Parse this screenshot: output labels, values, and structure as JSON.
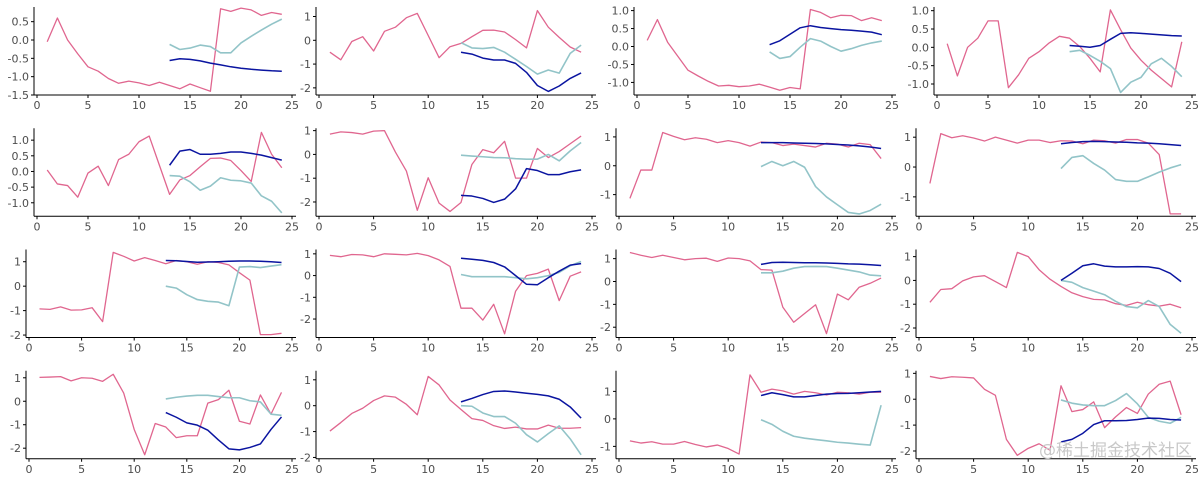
{
  "chart_data": {
    "type": "line",
    "layout": "4x4 small multiples",
    "grid": false,
    "x": [
      1,
      2,
      3,
      4,
      5,
      6,
      7,
      8,
      9,
      10,
      11,
      12,
      13,
      14,
      15,
      16,
      17,
      18,
      19,
      20,
      21,
      22,
      23,
      24
    ],
    "x_forecast": [
      13,
      14,
      15,
      16,
      17,
      18,
      19,
      20,
      21,
      22,
      23,
      24
    ],
    "xlim": [
      0,
      25
    ],
    "xticks": [
      "0",
      "5",
      "10",
      "15",
      "20",
      "25"
    ],
    "colors": {
      "history": "#e0668f",
      "forecast_a": "#92c4c8",
      "forecast_b": "#0a14a0"
    },
    "panels": [
      {
        "ylim": [
          -1.5,
          0.9
        ],
        "yticks": [
          0.5,
          0,
          -0.5,
          -1,
          -1.5
        ],
        "ytick_labels": [
          "0.5",
          "0.0",
          "-0.5",
          "-1.0",
          "-1.5"
        ],
        "history": [
          -0.05,
          0.6,
          0,
          -0.38,
          -0.73,
          -0.85,
          -1.05,
          -1.18,
          -1.12,
          -1.17,
          -1.24,
          -1.15,
          -1.24,
          -1.33,
          -1.2,
          -1.3,
          -1.4,
          0.85,
          0.78,
          0.87,
          0.82,
          0.67,
          0.75,
          0.7
        ],
        "forecast_a": [
          -0.12,
          -0.26,
          -0.22,
          -0.14,
          -0.18,
          -0.35,
          -0.35,
          -0.08,
          0.1,
          0.27,
          0.43,
          0.57
        ],
        "forecast_b": [
          -0.56,
          -0.51,
          -0.53,
          -0.57,
          -0.63,
          -0.68,
          -0.73,
          -0.77,
          -0.8,
          -0.82,
          -0.84,
          -0.85
        ]
      },
      {
        "ylim": [
          -2.3,
          1.4
        ],
        "yticks": [
          1,
          0,
          -1,
          -2
        ],
        "ytick_labels": [
          "1",
          "0",
          "-1",
          "-2"
        ],
        "history": [
          -0.5,
          -0.82,
          -0.05,
          0.15,
          -0.45,
          0.38,
          0.55,
          0.95,
          1.13,
          0.2,
          -0.73,
          -0.27,
          -0.13,
          0.15,
          0.42,
          0.43,
          0.35,
          0.03,
          -0.32,
          1.25,
          0.55,
          0.12,
          -0.28,
          -0.5
        ],
        "forecast_a": [
          -0.1,
          -0.32,
          -0.35,
          -0.3,
          -0.5,
          -0.8,
          -1.1,
          -1.42,
          -1.25,
          -1.38,
          -0.55,
          -0.2
        ],
        "forecast_b": [
          -0.5,
          -0.58,
          -0.75,
          -0.83,
          -0.83,
          -0.97,
          -1.35,
          -1.9,
          -2.15,
          -1.92,
          -1.6,
          -1.37
        ]
      },
      {
        "ylim": [
          -1.35,
          1.1
        ],
        "yticks": [
          1,
          0.5,
          0,
          -0.5,
          -1
        ],
        "ytick_labels": [
          "1.0",
          "0.5",
          "0.0",
          "-0.5",
          "-1.0"
        ],
        "history": [
          0.17,
          0.75,
          0.12,
          -0.27,
          -0.66,
          -0.82,
          -0.97,
          -1.1,
          -1.08,
          -1.12,
          -1.1,
          -1.05,
          -1.13,
          -1.22,
          -1.14,
          -1.18,
          1.03,
          0.95,
          0.8,
          0.87,
          0.86,
          0.72,
          0.8,
          0.72
        ],
        "forecast_a": [
          -0.15,
          -0.33,
          -0.28,
          -0.02,
          0.22,
          0.15,
          0.0,
          -0.13,
          -0.06,
          0.03,
          0.1,
          0.15
        ],
        "forecast_b": [
          0.05,
          0.16,
          0.34,
          0.52,
          0.58,
          0.53,
          0.5,
          0.47,
          0.45,
          0.43,
          0.4,
          0.33
        ]
      },
      {
        "ylim": [
          -1.3,
          1.1
        ],
        "yticks": [
          1,
          0.5,
          0,
          -0.5,
          -1
        ],
        "ytick_labels": [
          "1.0",
          "0.5",
          "0.0",
          "-0.5",
          "-1.0"
        ],
        "history": [
          0.1,
          -0.78,
          0,
          0.25,
          0.72,
          0.72,
          -1.1,
          -0.75,
          -0.3,
          -0.12,
          0.12,
          0.3,
          0.25,
          0.02,
          -0.3,
          -0.67,
          1.02,
          0.48,
          -0.02,
          -0.35,
          -0.62,
          -0.85,
          -1.08,
          0.15
        ],
        "forecast_a": [
          -0.12,
          -0.08,
          -0.22,
          -0.38,
          -0.58,
          -1.23,
          -0.95,
          -0.82,
          -0.45,
          -0.3,
          -0.52,
          -0.8
        ],
        "forecast_b": [
          0.05,
          0.03,
          0,
          0.05,
          0.22,
          0.38,
          0.4,
          0.38,
          0.36,
          0.34,
          0.32,
          0.31
        ]
      },
      {
        "ylim": [
          -1.43,
          1.38
        ],
        "yticks": [
          1,
          0.5,
          0,
          -0.5,
          -1
        ],
        "ytick_labels": [
          "1.0",
          "0.5",
          "0.0",
          "-0.5",
          "-1.0"
        ],
        "history": [
          0.05,
          -0.4,
          -0.45,
          -0.82,
          -0.05,
          0.17,
          -0.45,
          0.38,
          0.55,
          0.95,
          1.13,
          0.2,
          -0.73,
          -0.27,
          -0.13,
          0.15,
          0.42,
          0.43,
          0.35,
          0.03,
          -0.32,
          1.25,
          0.55,
          0.12
        ],
        "forecast_a": [
          -0.13,
          -0.15,
          -0.33,
          -0.6,
          -0.47,
          -0.2,
          -0.28,
          -0.3,
          -0.37,
          -0.78,
          -0.95,
          -1.32
        ],
        "forecast_b": [
          0.2,
          0.65,
          0.7,
          0.55,
          0.55,
          0.58,
          0.62,
          0.62,
          0.58,
          0.52,
          0.44,
          0.36
        ]
      },
      {
        "ylim": [
          -2.6,
          1.1
        ],
        "yticks": [
          1,
          0,
          -1,
          -2
        ],
        "ytick_labels": [
          "1",
          "0",
          "-1",
          "-2"
        ],
        "history": [
          0.85,
          0.95,
          0.92,
          0.85,
          0.98,
          1.0,
          0.1,
          -0.7,
          -2.35,
          -0.98,
          -2.05,
          -2.4,
          -2.02,
          -0.42,
          0.2,
          0.07,
          0.55,
          -1.0,
          -1.0,
          0.25,
          -0.13,
          0.12,
          0.45,
          0.77
        ],
        "forecast_a": [
          -0.03,
          -0.07,
          -0.1,
          -0.13,
          -0.14,
          -0.18,
          -0.2,
          -0.2,
          0,
          -0.27,
          0.15,
          0.5
        ],
        "forecast_b": [
          -1.72,
          -1.75,
          -1.85,
          -2.02,
          -1.88,
          -1.45,
          -0.6,
          -0.68,
          -0.85,
          -0.85,
          -0.73,
          -0.65
        ]
      },
      {
        "ylim": [
          -1.75,
          1.3
        ],
        "yticks": [
          1,
          0,
          -1
        ],
        "ytick_labels": [
          "1",
          "0",
          "-1"
        ],
        "history": [
          -1.13,
          -0.15,
          -0.15,
          1.15,
          1.02,
          0.9,
          0.97,
          0.92,
          0.8,
          0.87,
          0.8,
          0.68,
          0.82,
          0.8,
          0.7,
          0.75,
          0.7,
          0.65,
          0.78,
          0.75,
          0.65,
          0.78,
          0.73,
          0.25
        ],
        "forecast_a": [
          -0.03,
          0.15,
          0.0,
          0.15,
          -0.05,
          -0.72,
          -1.08,
          -1.35,
          -1.62,
          -1.67,
          -1.55,
          -1.33
        ],
        "forecast_b": [
          0.8,
          0.8,
          0.8,
          0.79,
          0.78,
          0.77,
          0.76,
          0.74,
          0.72,
          0.69,
          0.65,
          0.6
        ]
      },
      {
        "ylim": [
          -1.65,
          1.3
        ],
        "yticks": [
          1,
          0,
          -1
        ],
        "ytick_labels": [
          "1",
          "0",
          "-1"
        ],
        "history": [
          -0.55,
          1.12,
          0.98,
          1.05,
          0.97,
          0.87,
          1.0,
          0.9,
          0.8,
          0.9,
          0.9,
          0.82,
          0.88,
          0.87,
          0.78,
          0.9,
          0.88,
          0.8,
          0.92,
          0.92,
          0.8,
          0.42,
          -1.57,
          -1.57
        ],
        "forecast_a": [
          -0.05,
          0.32,
          0.38,
          0.12,
          -0.1,
          -0.42,
          -0.48,
          -0.48,
          -0.33,
          -0.17,
          -0.03,
          0.08
        ],
        "forecast_b": [
          0.78,
          0.82,
          0.85,
          0.86,
          0.85,
          0.84,
          0.83,
          0.81,
          0.8,
          0.78,
          0.75,
          0.72
        ]
      },
      {
        "ylim": [
          -2.1,
          1.5
        ],
        "yticks": [
          1,
          0,
          -1,
          -2
        ],
        "ytick_labels": [
          "1",
          "0",
          "-1",
          "-2"
        ],
        "history": [
          -0.93,
          -0.95,
          -0.85,
          -0.98,
          -0.97,
          -0.88,
          -1.45,
          1.38,
          1.22,
          1.03,
          1.17,
          1.05,
          0.92,
          1.05,
          1.0,
          0.9,
          1.0,
          0.97,
          0.87,
          0.55,
          0.25,
          -1.98,
          -1.98,
          -1.93
        ],
        "forecast_a": [
          0,
          -0.08,
          -0.35,
          -0.55,
          -0.62,
          -0.65,
          -0.8,
          0.78,
          0.8,
          0.76,
          0.82,
          0.88
        ],
        "forecast_b": [
          1.05,
          1.04,
          1.01,
          0.98,
          0.99,
          1.0,
          1.02,
          1.03,
          1.03,
          1.02,
          1.0,
          0.97
        ]
      },
      {
        "ylim": [
          -2.85,
          1.2
        ],
        "yticks": [
          1,
          0,
          -1,
          -2
        ],
        "ytick_labels": [
          "1",
          "0",
          "-1",
          "-2"
        ],
        "history": [
          0.93,
          0.87,
          0.97,
          0.95,
          0.87,
          1.0,
          0.98,
          0.95,
          1.02,
          0.92,
          0.72,
          0.42,
          -1.5,
          -1.5,
          -2.05,
          -1.32,
          -2.68,
          -0.72,
          0,
          0.1,
          0.3,
          -1.15,
          -0.03,
          0.17
        ],
        "forecast_a": [
          0.05,
          -0.05,
          -0.05,
          -0.05,
          -0.05,
          -0.1,
          -0.15,
          -0.1,
          0.0,
          0.15,
          0.45,
          0.65
        ],
        "forecast_b": [
          0.8,
          0.75,
          0.7,
          0.6,
          0.4,
          0.0,
          -0.4,
          -0.42,
          -0.1,
          0.2,
          0.48,
          0.55
        ]
      },
      {
        "ylim": [
          -2.45,
          1.4
        ],
        "yticks": [
          1,
          0,
          -1,
          -2
        ],
        "ytick_labels": [
          "1",
          "0",
          "-1",
          "-2"
        ],
        "history": [
          1.27,
          1.15,
          1.05,
          1.15,
          1.05,
          0.95,
          1.0,
          1.02,
          0.88,
          1.03,
          1.0,
          0.9,
          0.52,
          0.5,
          -1.12,
          -1.78,
          -1.4,
          -1.02,
          -2.28,
          -0.55,
          -0.8,
          -0.25,
          -0.08,
          0.15
        ],
        "forecast_a": [
          0.38,
          0.38,
          0.45,
          0.58,
          0.65,
          0.66,
          0.65,
          0.58,
          0.5,
          0.42,
          0.28,
          0.25
        ],
        "forecast_b": [
          0.75,
          0.83,
          0.84,
          0.83,
          0.82,
          0.82,
          0.81,
          0.79,
          0.77,
          0.76,
          0.73,
          0.7
        ]
      },
      {
        "ylim": [
          -2.4,
          1.3
        ],
        "yticks": [
          1,
          0,
          -1,
          -2
        ],
        "ytick_labels": [
          "1",
          "0",
          "-1",
          "-2"
        ],
        "history": [
          -0.92,
          -0.38,
          -0.35,
          -0.02,
          0.15,
          0.2,
          -0.05,
          -0.3,
          1.18,
          1.0,
          0.45,
          0.05,
          -0.25,
          -0.52,
          -0.68,
          -0.8,
          -0.82,
          -0.98,
          -1.05,
          -0.92,
          -1.02,
          -1.08,
          -1.0,
          -1.15
        ],
        "forecast_a": [
          0.0,
          -0.08,
          -0.3,
          -0.45,
          -0.6,
          -0.88,
          -1.1,
          -1.15,
          -0.85,
          -1.1,
          -1.85,
          -2.22
        ],
        "forecast_b": [
          0.0,
          0.3,
          0.62,
          0.7,
          0.6,
          0.57,
          0.57,
          0.58,
          0.57,
          0.5,
          0.3,
          -0.05
        ]
      },
      {
        "ylim": [
          -2.45,
          1.3
        ],
        "yticks": [
          1,
          0,
          -1,
          -2
        ],
        "ytick_labels": [
          "1",
          "0",
          "-1",
          "-2"
        ],
        "history": [
          1.02,
          1.03,
          1.05,
          0.87,
          1.0,
          0.98,
          0.85,
          1.15,
          0.35,
          -1.2,
          -2.28,
          -0.95,
          -1.1,
          -1.55,
          -1.47,
          -1.47,
          -0.08,
          0.07,
          0.47,
          -0.85,
          -0.97,
          0.27,
          -0.55,
          0.38
        ],
        "forecast_a": [
          0.1,
          0.17,
          0.22,
          0.25,
          0.25,
          0.2,
          0.15,
          0.15,
          0.02,
          -0.03,
          -0.55,
          -0.6
        ],
        "forecast_b": [
          -0.48,
          -0.68,
          -0.92,
          -1.02,
          -1.23,
          -1.65,
          -2.03,
          -2.07,
          -1.97,
          -1.82,
          -1.2,
          -0.67
        ]
      },
      {
        "ylim": [
          -2.05,
          1.35
        ],
        "yticks": [
          1,
          0,
          -1,
          -2
        ],
        "ytick_labels": [
          "1",
          "0",
          "-1",
          "-2"
        ],
        "history": [
          -0.98,
          -0.65,
          -0.3,
          -0.1,
          0.2,
          0.38,
          0.33,
          0.05,
          -0.35,
          1.13,
          0.8,
          0.22,
          -0.15,
          -0.5,
          -0.57,
          -0.77,
          -0.88,
          -0.83,
          -0.9,
          -0.9,
          -0.75,
          -0.87,
          -0.87,
          -0.85
        ],
        "forecast_a": [
          0.0,
          -0.02,
          -0.28,
          -0.42,
          -0.42,
          -0.68,
          -1.12,
          -1.4,
          -1.08,
          -0.78,
          -1.28,
          -1.9
        ],
        "forecast_b": [
          0.15,
          0.28,
          0.43,
          0.55,
          0.57,
          0.53,
          0.48,
          0.44,
          0.38,
          0.25,
          -0.05,
          -0.48
        ]
      },
      {
        "ylim": [
          -1.45,
          1.75
        ],
        "yticks": [
          1,
          0,
          -1
        ],
        "ytick_labels": [
          "1",
          "0",
          "-1"
        ],
        "history": [
          -0.8,
          -0.88,
          -0.83,
          -0.92,
          -0.92,
          -0.82,
          -0.93,
          -1.02,
          -0.95,
          -1.08,
          -1.28,
          1.6,
          0.97,
          1.08,
          1.02,
          0.9,
          1.0,
          0.95,
          0.87,
          0.97,
          0.95,
          0.9,
          0.97,
          0.97
        ],
        "forecast_a": [
          -0.03,
          -0.2,
          -0.45,
          -0.63,
          -0.7,
          -0.75,
          -0.8,
          -0.85,
          -0.88,
          -0.92,
          -0.95,
          0.5
        ],
        "forecast_b": [
          0.85,
          0.95,
          0.88,
          0.8,
          0.8,
          0.85,
          0.9,
          0.92,
          0.93,
          0.95,
          0.98,
          1.0
        ]
      },
      {
        "ylim": [
          -2.3,
          1.1
        ],
        "yticks": [
          1,
          0,
          -1,
          -2
        ],
        "ytick_labels": [
          "1",
          "0",
          "-1",
          "-2"
        ],
        "history": [
          0.88,
          0.8,
          0.87,
          0.85,
          0.82,
          0.38,
          0.15,
          -1.55,
          -2.17,
          -1.9,
          -1.72,
          -1.97,
          0.52,
          -0.48,
          -0.4,
          -0.1,
          -1.1,
          -0.68,
          -0.32,
          -0.55,
          0.2,
          0.58,
          0.7,
          -0.6
        ],
        "forecast_a": [
          -0.03,
          -0.15,
          -0.22,
          -0.25,
          -0.25,
          -0.05,
          0.22,
          -0.18,
          -0.7,
          -0.85,
          -0.93,
          -0.7
        ],
        "forecast_b": [
          -1.65,
          -1.55,
          -1.32,
          -0.98,
          -0.83,
          -0.83,
          -0.82,
          -0.78,
          -0.73,
          -0.74,
          -0.78,
          -0.8
        ]
      }
    ]
  },
  "watermark": "@稀土掘金技术社区"
}
